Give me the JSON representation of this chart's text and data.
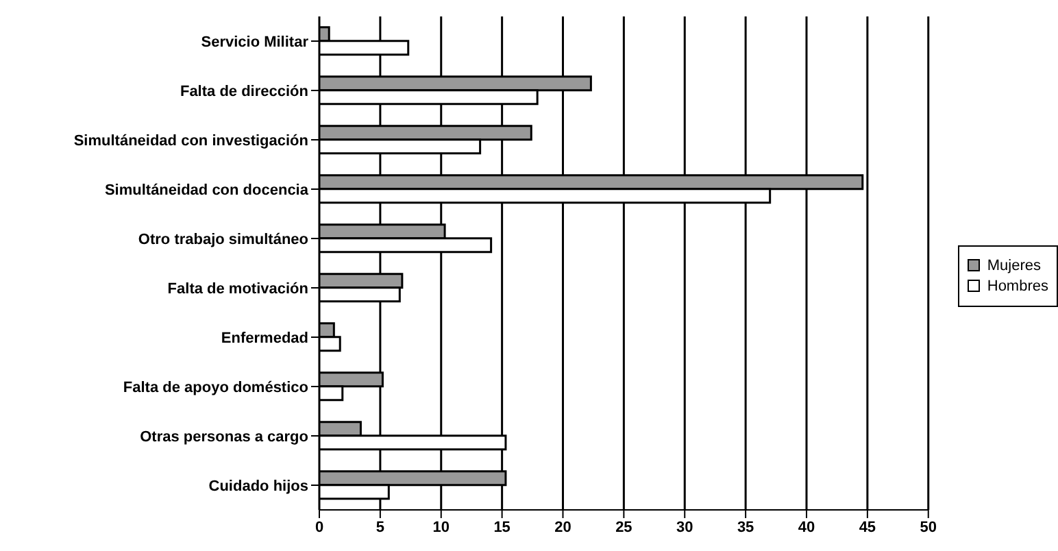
{
  "chart_data": {
    "type": "bar",
    "orientation": "horizontal",
    "categories": [
      "Servicio Militar",
      "Falta de dirección",
      "Simultáneidad con investigación",
      "Simultáneidad con docencia",
      "Otro trabajo simultáneo",
      "Falta de motivación",
      "Enfermedad",
      "Falta de apoyo doméstico",
      "Otras personas a cargo",
      "Cuidado hijos"
    ],
    "series": [
      {
        "name": "Mujeres",
        "color": "#999999",
        "values": [
          0.8,
          22.3,
          17.4,
          44.6,
          10.3,
          6.8,
          1.2,
          5.2,
          3.4,
          15.3
        ]
      },
      {
        "name": "Hombres",
        "color": "#ffffff",
        "values": [
          7.3,
          17.9,
          13.2,
          37.0,
          14.1,
          6.6,
          1.7,
          1.9,
          15.3,
          5.7
        ]
      }
    ],
    "xlim": [
      0,
      50
    ],
    "xticks": [
      0,
      5,
      10,
      15,
      20,
      25,
      30,
      35,
      40,
      45,
      50
    ],
    "grid": "x",
    "legend": "right"
  }
}
